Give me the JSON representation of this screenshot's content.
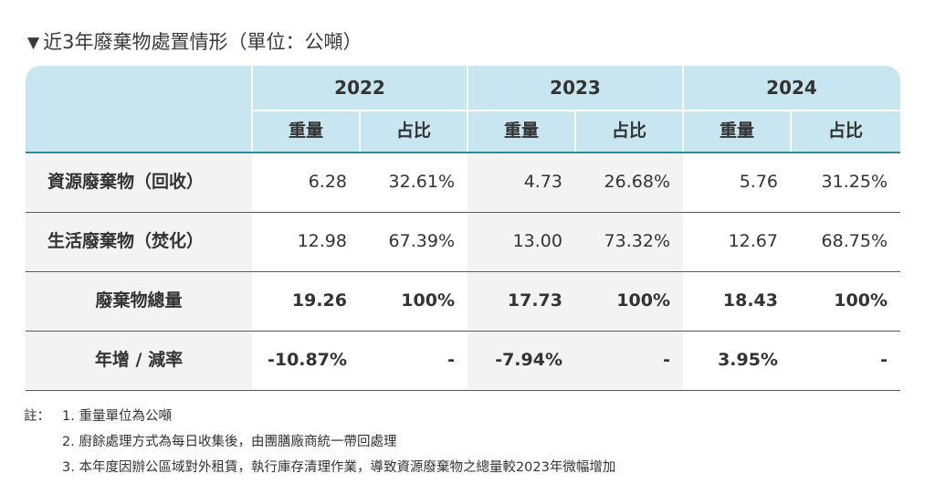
{
  "title": "近3年廢棄物處置情形（單位：公噸）",
  "header": {
    "years": [
      "2022",
      "2023",
      "2024"
    ],
    "sub_weight": "重量",
    "sub_ratio": "占比"
  },
  "rows": [
    {
      "label": "資源廢棄物（回收）",
      "values": [
        "6.28",
        "32.61%",
        "4.73",
        "26.68%",
        "5.76",
        "31.25%"
      ]
    },
    {
      "label": "生活廢棄物（焚化）",
      "values": [
        "12.98",
        "67.39%",
        "13.00",
        "73.32%",
        "12.67",
        "68.75%"
      ]
    },
    {
      "label": "廢棄物總量",
      "values": [
        "19.26",
        "100%",
        "17.73",
        "100%",
        "18.43",
        "100%"
      ]
    },
    {
      "label": "年增 / 減率",
      "values": [
        "-10.87%",
        "-",
        "-7.94%",
        "-",
        "3.95%",
        "-"
      ]
    }
  ],
  "notes": {
    "prefix": "註：",
    "items": [
      "1.  重量單位為公噸",
      "2.  廚餘處理方式為每日收集後，由團膳廠商統一帶回處理",
      "3.  本年度因辦公區域對外租賃，執行庫存清理作業，導致資源廢棄物之總量較2023年微幅增加"
    ]
  }
}
